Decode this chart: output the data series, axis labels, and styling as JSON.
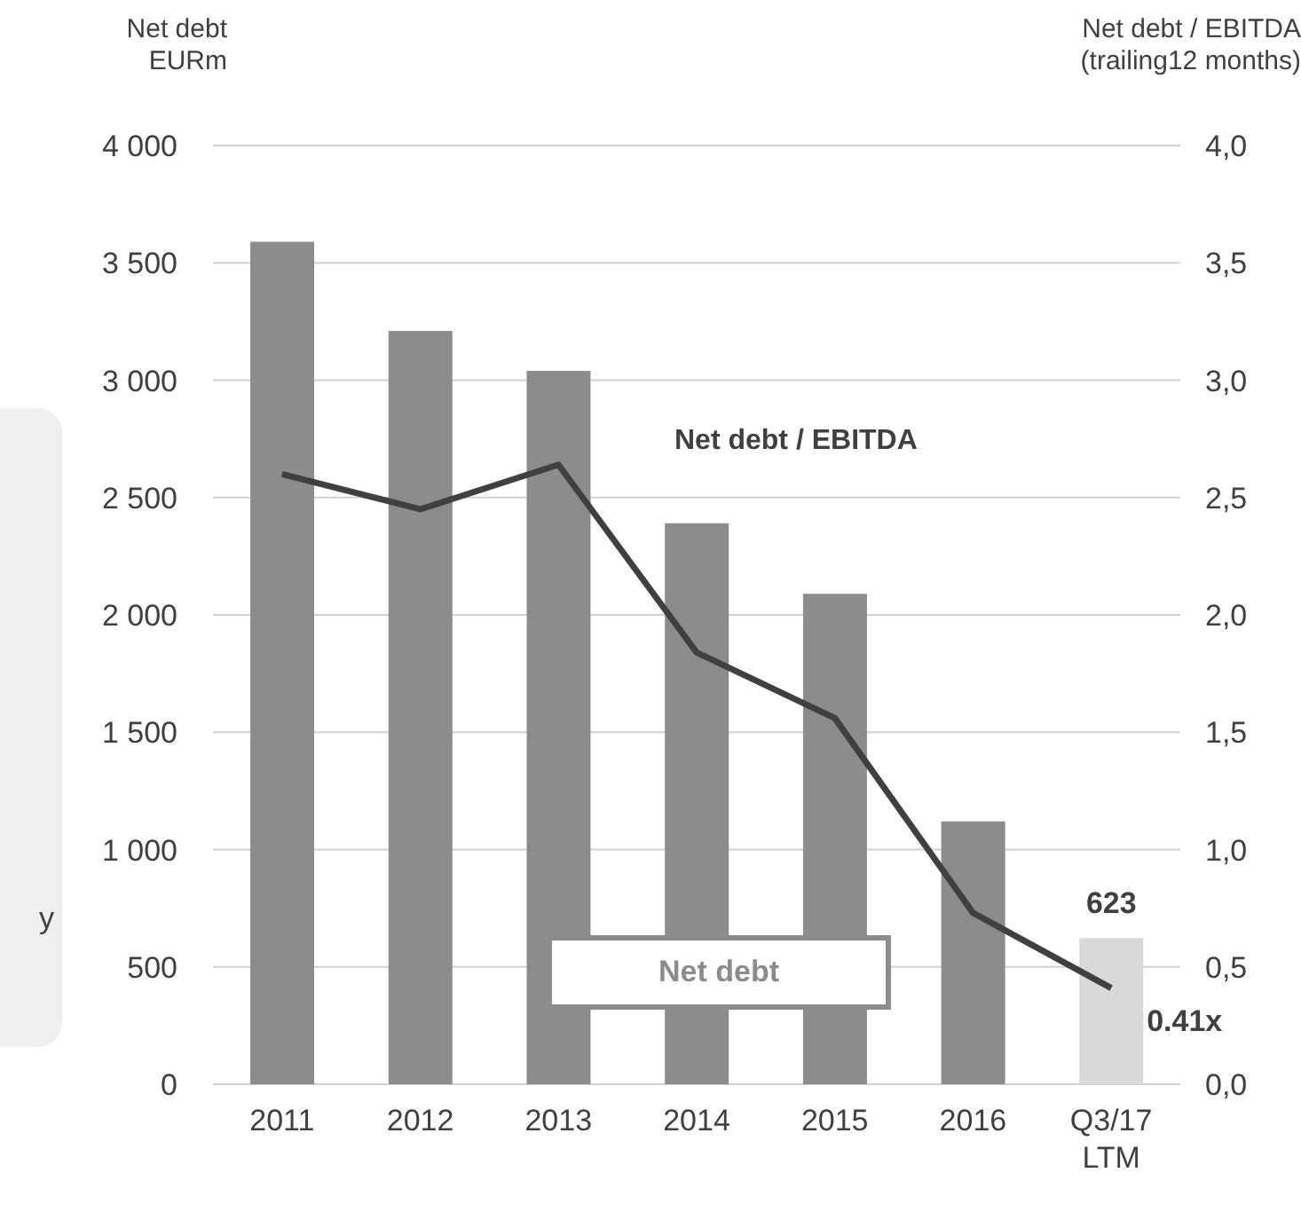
{
  "chart_data": {
    "type": "bar",
    "ylabel": "Net debt\nEURm",
    "y2label": "Net debt / EBITDA\n(trailing12 months)",
    "categories": [
      "2011",
      "2012",
      "2013",
      "2014",
      "2015",
      "2016",
      "Q3/17\nLTM"
    ],
    "series": [
      {
        "name": "Net debt",
        "colors": [
          "#8c8c8c",
          "#8c8c8c",
          "#8c8c8c",
          "#8c8c8c",
          "#8c8c8c",
          "#8c8c8c",
          "#d9d9d9"
        ],
        "values": [
          3590,
          3210,
          3040,
          2390,
          2090,
          1120,
          623
        ],
        "value_labels": [
          null,
          null,
          null,
          null,
          null,
          null,
          "623"
        ]
      },
      {
        "name": "Net debt / EBITDA",
        "type": "line",
        "axis": "y2",
        "color": "#404040",
        "values": [
          2.6,
          2.45,
          2.64,
          1.84,
          1.56,
          0.73,
          0.41
        ],
        "value_labels": [
          null,
          null,
          null,
          null,
          null,
          null,
          "0.41x"
        ]
      }
    ],
    "ylim": [
      0,
      4000
    ],
    "yticks": [
      {
        "value": 0,
        "label": "0"
      },
      {
        "value": 500,
        "label": "500"
      },
      {
        "value": 1000,
        "label": "1 000"
      },
      {
        "value": 1500,
        "label": "1 500"
      },
      {
        "value": 2000,
        "label": "2 000"
      },
      {
        "value": 2500,
        "label": "2 500"
      },
      {
        "value": 3000,
        "label": "3 000"
      },
      {
        "value": 3500,
        "label": "3 500"
      },
      {
        "value": 4000,
        "label": "4 000"
      }
    ],
    "y2lim": [
      0,
      4
    ],
    "y2ticks": [
      {
        "value": 0,
        "label": "0,0"
      },
      {
        "value": 0.5,
        "label": "0,5"
      },
      {
        "value": 1,
        "label": "1,0"
      },
      {
        "value": 1.5,
        "label": "1,5"
      },
      {
        "value": 2,
        "label": "2,0"
      },
      {
        "value": 2.5,
        "label": "2,5"
      },
      {
        "value": 3,
        "label": "3,0"
      },
      {
        "value": 3.5,
        "label": "3,5"
      },
      {
        "value": 4,
        "label": "4,0"
      }
    ],
    "grid": "y",
    "marker": "none",
    "line_style": "solid",
    "annotations": [
      "y"
    ]
  }
}
